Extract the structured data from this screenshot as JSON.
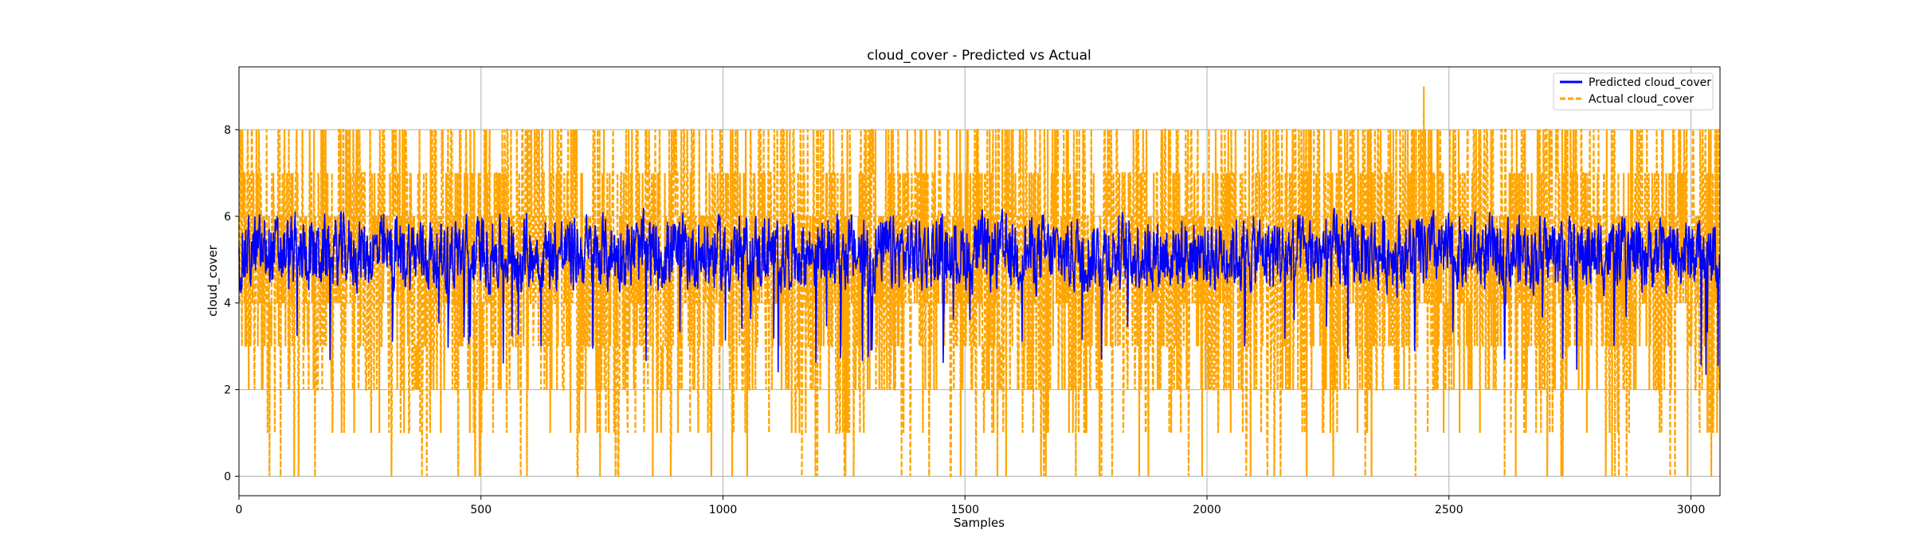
{
  "chart_data": {
    "type": "line",
    "title": "cloud_cover - Predicted vs Actual",
    "xlabel": "Samples",
    "ylabel": "cloud_cover",
    "xlim": [
      0,
      3060
    ],
    "ylim": [
      -0.45,
      9.45
    ],
    "xticks": [
      0,
      500,
      1000,
      1500,
      2000,
      2500,
      3000
    ],
    "yticks": [
      0,
      2,
      4,
      6,
      8
    ],
    "grid": true,
    "legend_position": "top-right",
    "n_samples": 3060,
    "series": [
      {
        "name": "Predicted cloud_cover",
        "color": "#0000ff",
        "style": "solid",
        "typical_range": [
          4.0,
          6.3
        ],
        "min": 2.3,
        "max": 6.6,
        "mean": 5.0
      },
      {
        "name": "Actual cloud_cover",
        "color": "#ffa500",
        "style": "dashed",
        "discrete_values": [
          0,
          1,
          2,
          3,
          4,
          5,
          6,
          7,
          8
        ],
        "value_weights": [
          0.02,
          0.04,
          0.1,
          0.12,
          0.14,
          0.15,
          0.16,
          0.14,
          0.13
        ],
        "min": 0,
        "max": 9,
        "spike": {
          "x": 2448,
          "y": 9
        }
      }
    ]
  }
}
